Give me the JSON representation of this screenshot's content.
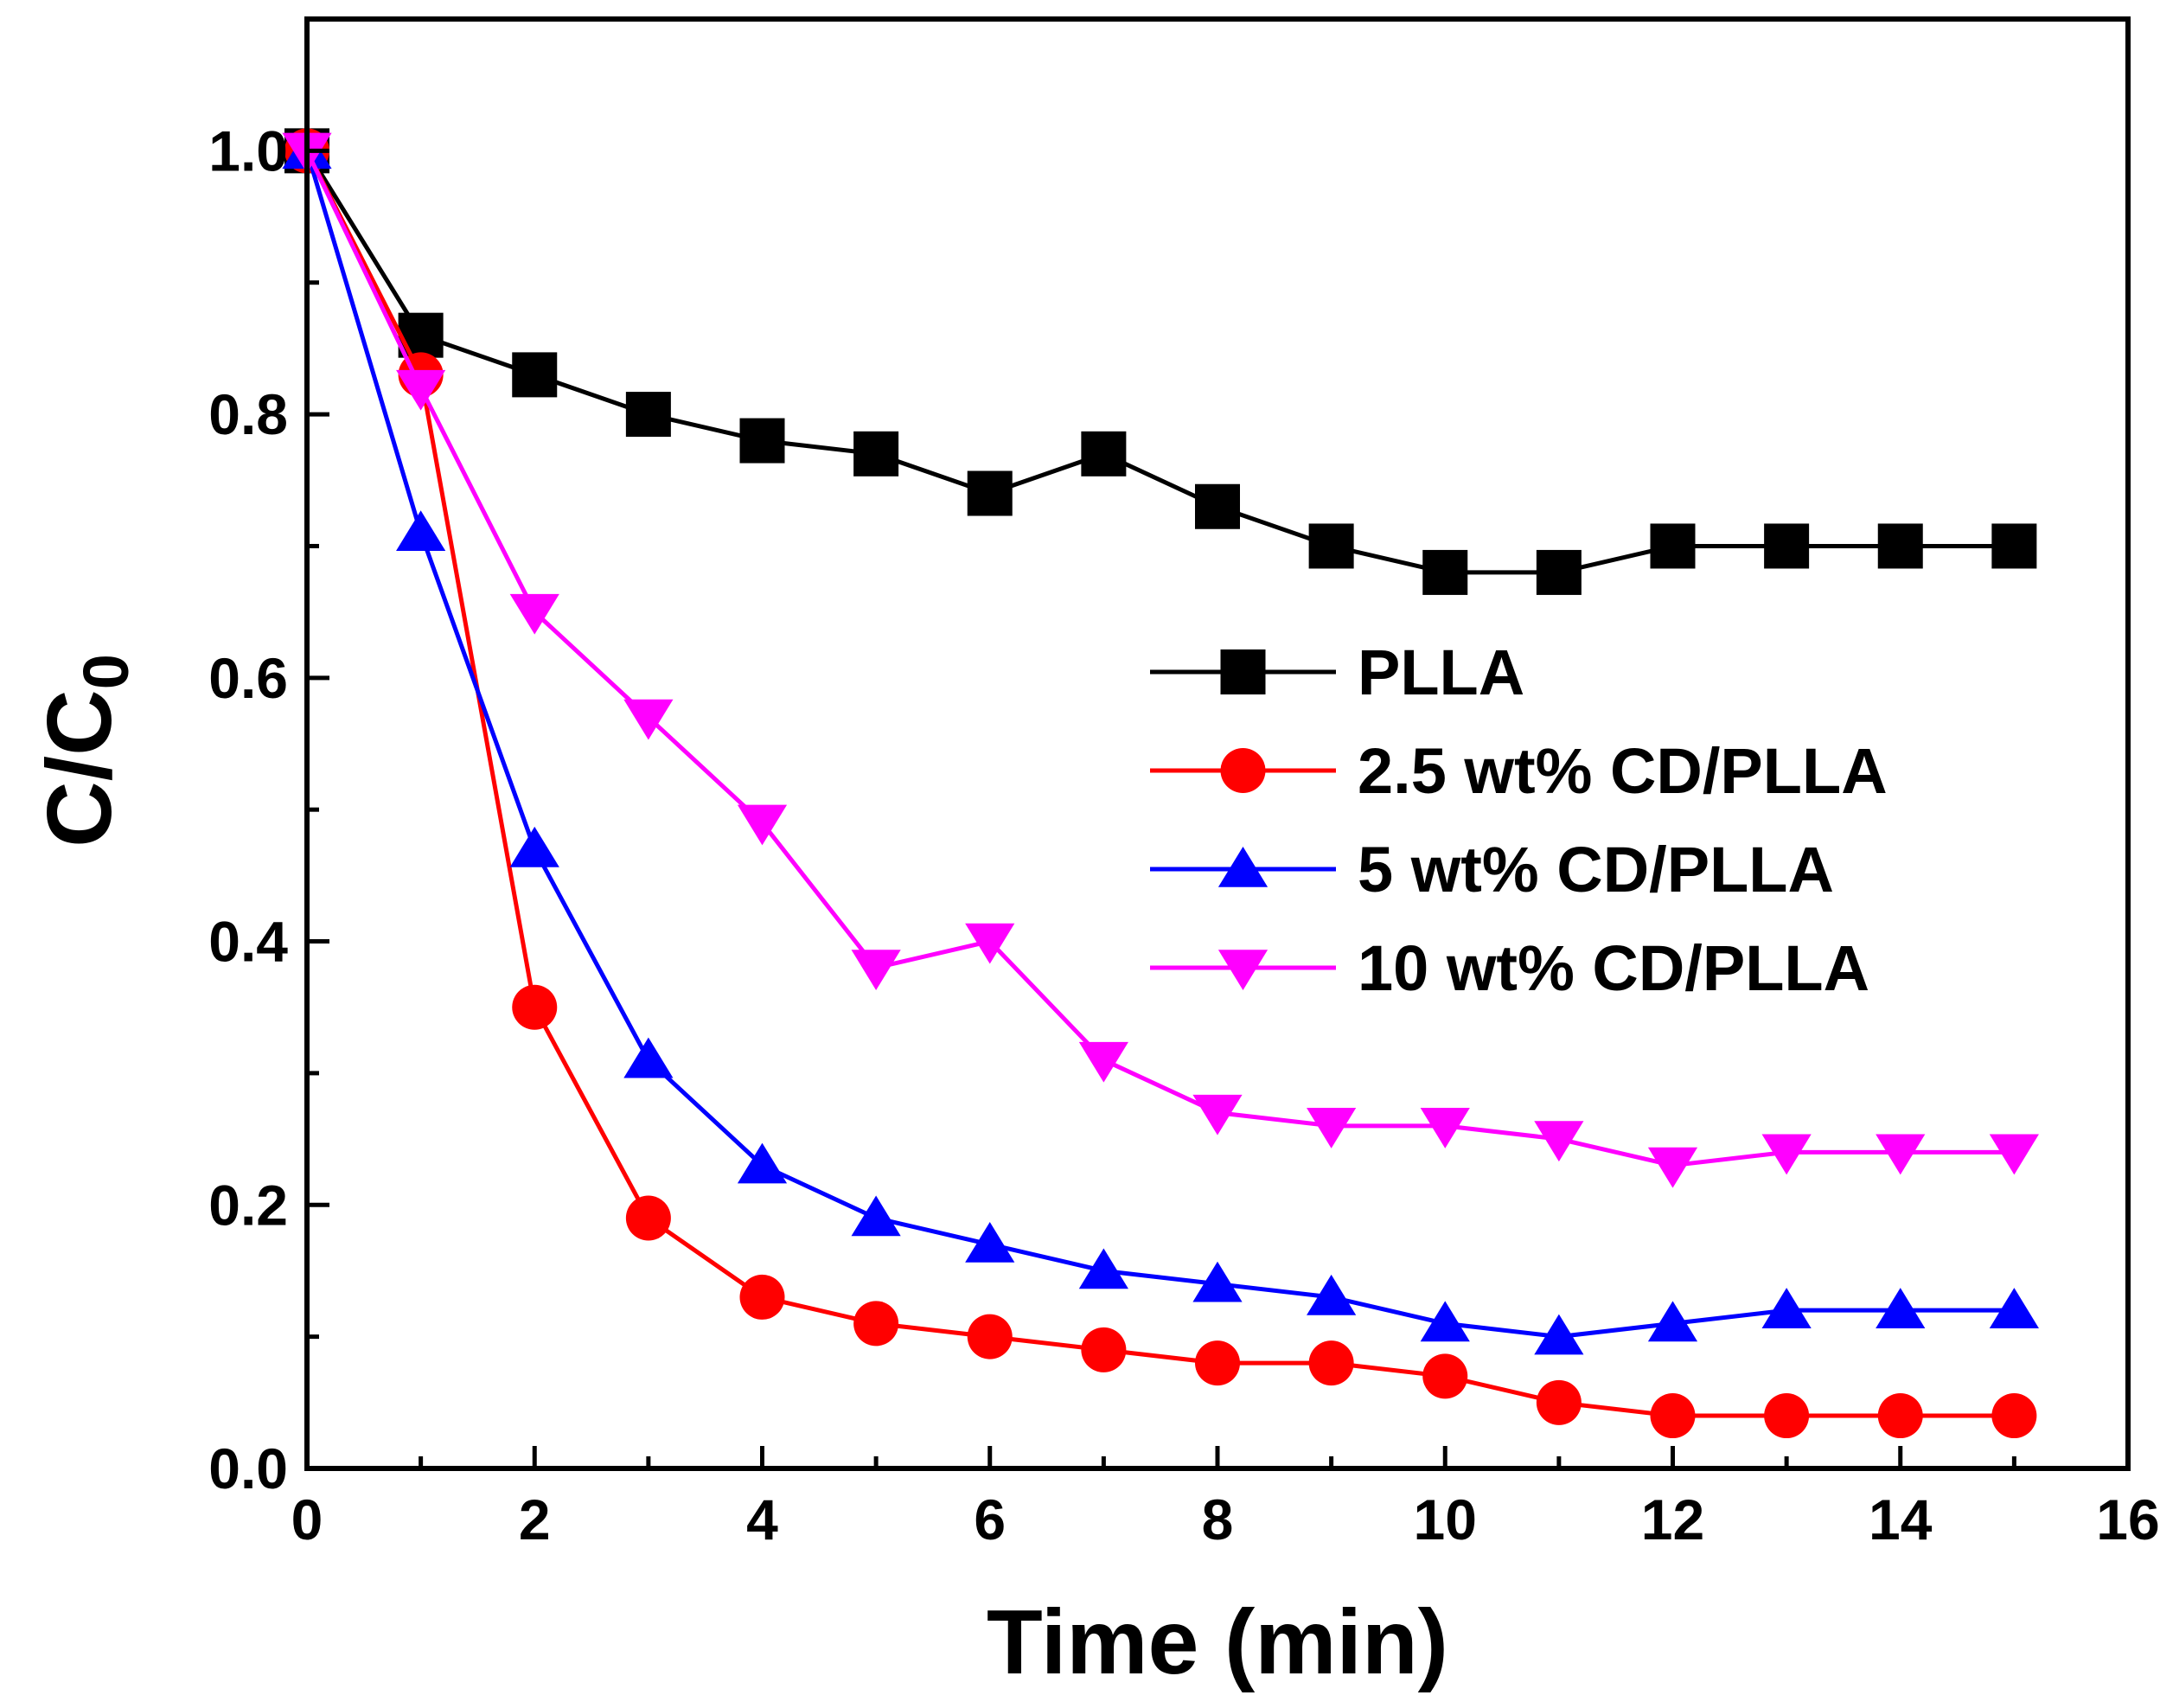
{
  "chart_data": {
    "type": "line",
    "title": "",
    "xlabel": "Time (min)",
    "ylabel_main": "C/C",
    "ylabel_sub": "0",
    "xlim": [
      0,
      16
    ],
    "ylim": [
      0.0,
      1.1
    ],
    "xticks": [
      0,
      2,
      4,
      6,
      8,
      10,
      12,
      14,
      16
    ],
    "xtick_labels": [
      "0",
      "2",
      "4",
      "6",
      "8",
      "10",
      "12",
      "14",
      "16"
    ],
    "yticks": [
      0.0,
      0.2,
      0.4,
      0.6,
      0.8,
      1.0
    ],
    "ytick_labels": [
      "0.0",
      "0.2",
      "0.4",
      "0.6",
      "0.8",
      "1.0"
    ],
    "grid": false,
    "legend_position": "center-right",
    "x": [
      0,
      1,
      2,
      3,
      4,
      5,
      6,
      7,
      8,
      9,
      10,
      11,
      12,
      13,
      14,
      15
    ],
    "series": [
      {
        "name": "PLLA",
        "marker": "square",
        "color": "#000000",
        "values": [
          1.0,
          0.86,
          0.83,
          0.8,
          0.78,
          0.77,
          0.74,
          0.77,
          0.73,
          0.7,
          0.68,
          0.68,
          0.7,
          0.7,
          0.7,
          0.7
        ]
      },
      {
        "name": "2.5 wt% CD/PLLA",
        "marker": "circle",
        "color": "#ff0000",
        "values": [
          1.0,
          0.83,
          0.35,
          0.19,
          0.13,
          0.11,
          0.1,
          0.09,
          0.08,
          0.08,
          0.07,
          0.05,
          0.04,
          0.04,
          0.04,
          0.04
        ]
      },
      {
        "name": "5 wt% CD/PLLA",
        "marker": "triangle-up",
        "color": "#0000ff",
        "values": [
          1.0,
          0.71,
          0.47,
          0.31,
          0.23,
          0.19,
          0.17,
          0.15,
          0.14,
          0.13,
          0.11,
          0.1,
          0.11,
          0.12,
          0.12,
          0.12
        ]
      },
      {
        "name": "10 wt% CD/PLLA",
        "marker": "triangle-down",
        "color": "#ff00ff",
        "values": [
          1.0,
          0.82,
          0.65,
          0.57,
          0.49,
          0.38,
          0.4,
          0.31,
          0.27,
          0.26,
          0.26,
          0.25,
          0.23,
          0.24,
          0.24,
          0.24
        ]
      }
    ]
  }
}
